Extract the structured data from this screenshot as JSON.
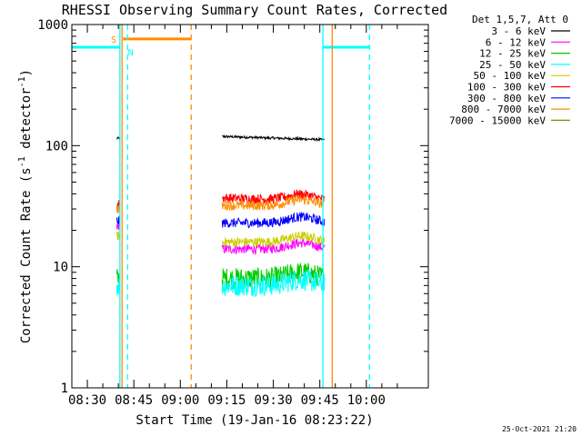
{
  "chart_data": {
    "type": "line",
    "title": "RHESSI Observing Summary Count Rates, Corrected",
    "xlabel": "Start Time (19-Jan-16 08:23:22)",
    "ylabel": "Corrected Count Rate (s⁻¹ detector⁻¹)",
    "ylabel_parts": {
      "main": "Corrected Count Rate (s",
      "sup1": "-1",
      "mid": " detector",
      "sup2": "-1",
      "end": ")"
    },
    "y_scale": "log",
    "ylim": [
      1,
      1000
    ],
    "y_ticks": [
      {
        "value": 1,
        "label": "1"
      },
      {
        "value": 10,
        "label": "10"
      },
      {
        "value": 100,
        "label": "100"
      },
      {
        "value": 1000,
        "label": "1000"
      }
    ],
    "x_range_minutes": [
      2,
      117
    ],
    "x_ticks": [
      {
        "minute": 7,
        "label": "08:30"
      },
      {
        "minute": 22,
        "label": "08:45"
      },
      {
        "minute": 37,
        "label": "09:00"
      },
      {
        "minute": 52,
        "label": "09:15"
      },
      {
        "minute": 67,
        "label": "09:30"
      },
      {
        "minute": 82,
        "label": "09:45"
      },
      {
        "minute": 97,
        "label": "10:00"
      }
    ],
    "legend_title": "Det 1,5,7, Att 0",
    "legend_position": "outside right",
    "series": [
      {
        "name": "3 - 6 keV",
        "color": "#000000",
        "segments": [
          {
            "x": [
              16.5,
              17.5
            ],
            "y": [
              115,
              115
            ]
          },
          {
            "x": [
              50.5,
              83.5
            ],
            "y": [
              119,
              112
            ]
          }
        ]
      },
      {
        "name": "6 - 12 keV",
        "color": "#ff00ff",
        "segments": [
          {
            "x": [
              16.5,
              17.5
            ],
            "y": [
              22,
              22
            ]
          },
          {
            "x": [
              50.5,
              83.5
            ],
            "y": [
              14,
              14
            ]
          }
        ]
      },
      {
        "name": "12 - 25 keV",
        "color": "#00cc00",
        "segments": [
          {
            "x": [
              16.5,
              17.5
            ],
            "y": [
              8,
              8
            ]
          },
          {
            "x": [
              50.5,
              83.5
            ],
            "y": [
              8,
              8
            ]
          }
        ]
      },
      {
        "name": "25 - 50 keV",
        "color": "#00ffff",
        "segments": [
          {
            "x": [
              16.5,
              17.5
            ],
            "y": [
              7,
              7
            ]
          },
          {
            "x": [
              50.5,
              83.5
            ],
            "y": [
              7,
              7
            ]
          }
        ]
      },
      {
        "name": "50 - 100 keV",
        "color": "#cccc00",
        "segments": [
          {
            "x": [
              16.5,
              17.5
            ],
            "y": [
              18,
              18
            ]
          },
          {
            "x": [
              50.5,
              83.5
            ],
            "y": [
              16,
              16
            ]
          }
        ]
      },
      {
        "name": "100 - 300 keV",
        "color": "#ff0000",
        "segments": [
          {
            "x": [
              16.5,
              17.5
            ],
            "y": [
              33,
              33
            ]
          },
          {
            "x": [
              50.5,
              83.5
            ],
            "y": [
              37,
              35
            ]
          }
        ]
      },
      {
        "name": "300 - 800 keV",
        "color": "#0000ff",
        "segments": [
          {
            "x": [
              16.5,
              17.5
            ],
            "y": [
              24,
              24
            ]
          },
          {
            "x": [
              50.5,
              83.5
            ],
            "y": [
              23,
              23
            ]
          }
        ]
      },
      {
        "name": "800 - 7000 keV",
        "color": "#ff8c00",
        "segments": [
          {
            "x": [
              16.5,
              17.5
            ],
            "y": [
              30,
              30
            ]
          },
          {
            "x": [
              50.5,
              83.5
            ],
            "y": [
              32,
              32
            ]
          }
        ]
      },
      {
        "name": "7000 - 15000 keV",
        "color": "#669900",
        "segments": []
      }
    ],
    "flags": {
      "saa_color": "#00ffff",
      "night_color": "#ff8c00",
      "saa_bars": [
        {
          "x": [
            2,
            17.5
          ],
          "y": 650
        },
        {
          "x": [
            83,
            98
          ],
          "y": 650
        }
      ],
      "night_bars": [
        {
          "x": [
            18.5,
            40.5
          ],
          "y": 760
        }
      ],
      "saa_solid_lines": [
        17.5,
        83
      ],
      "saa_dashed_lines": [
        20,
        98
      ],
      "night_solid_lines": [
        18.2,
        86
      ],
      "night_dashed_lines": [
        40.5
      ],
      "s_label": {
        "text": "S",
        "minute": 15.5,
        "value": 760
      },
      "n_label": {
        "text": "N",
        "minute": 21,
        "value": 650
      }
    },
    "footer_date": "25-Oct-2021 21:20"
  }
}
